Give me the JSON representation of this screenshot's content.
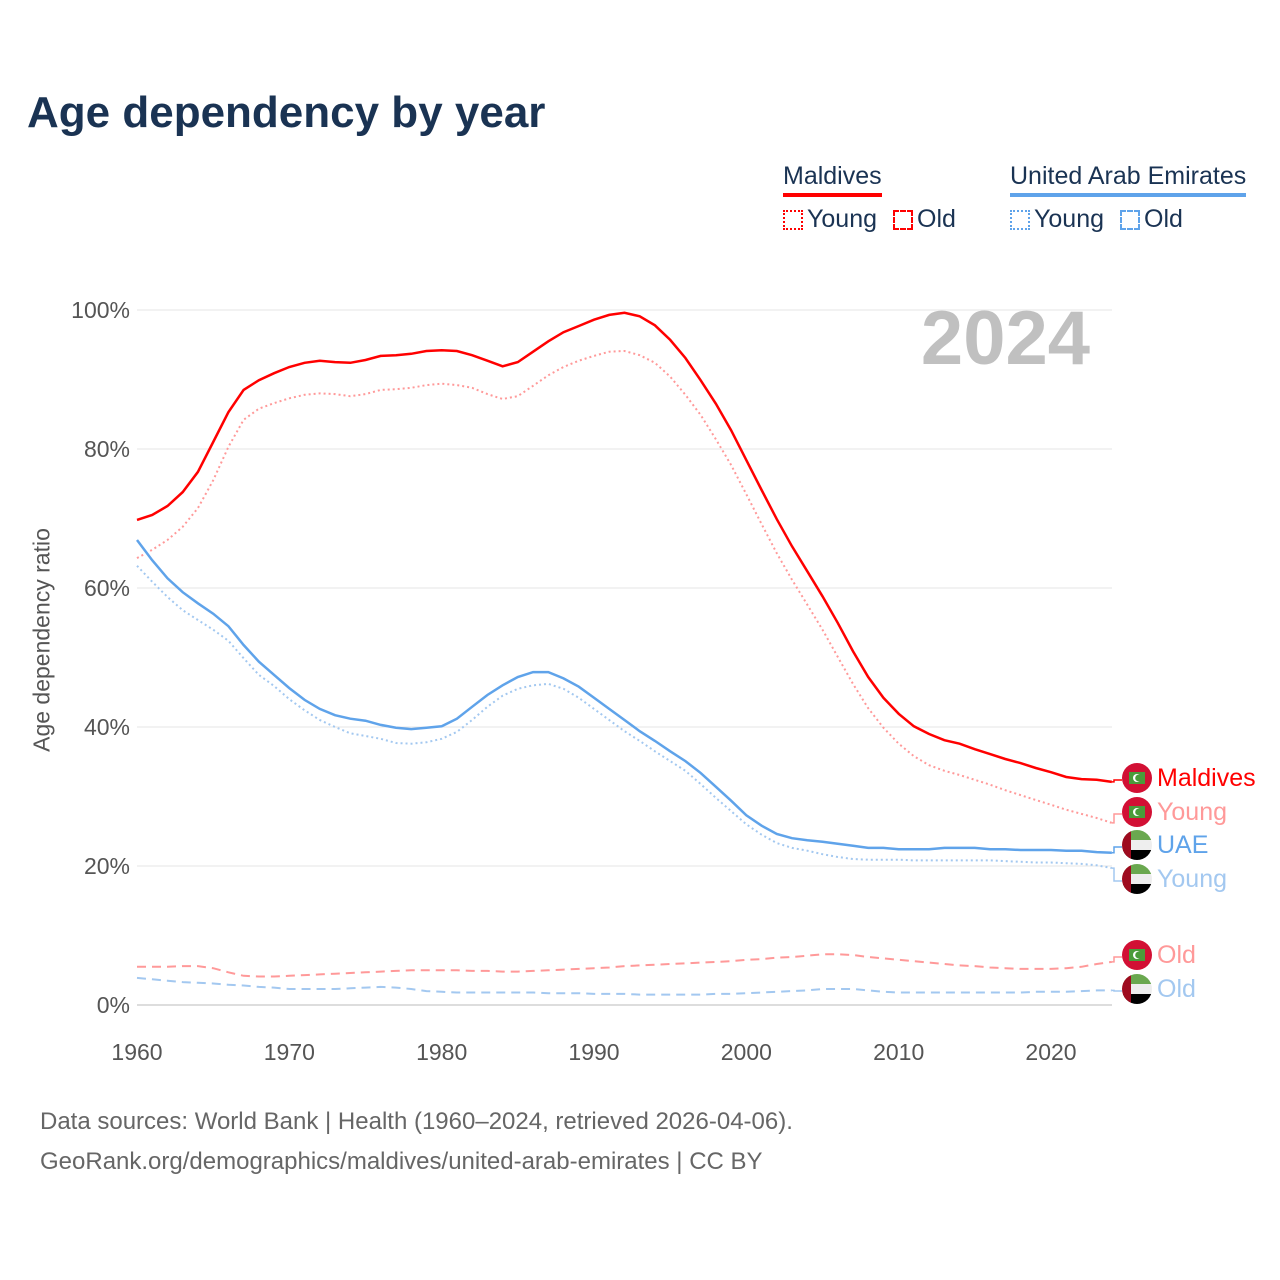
{
  "title": "Age dependency by year",
  "year_watermark": "2024",
  "legend": {
    "maldives": {
      "name": "Maldives",
      "young": "Young",
      "old": "Old"
    },
    "uae": {
      "name": "United Arab Emirates",
      "young": "Young",
      "old": "Old"
    }
  },
  "end_labels": {
    "maldives_total": "Maldives",
    "maldives_young": "Young",
    "uae_total": "UAE",
    "uae_young": "Young",
    "maldives_old": "Old",
    "uae_old": "Old"
  },
  "source": {
    "line1": "Data sources: World Bank | Health (1960–2024, retrieved 2026-04-06).",
    "line2": "GeoRank.org/demographics/maldives/united-arab-emirates | CC BY"
  },
  "colors": {
    "maldives": "#ff0000",
    "maldives_light": "#ff9999",
    "uae": "#5fa3ea",
    "uae_light": "#a3c8f0",
    "title": "#1a3353"
  },
  "chart_data": {
    "type": "line",
    "title": "Age dependency by year",
    "xlabel": "",
    "ylabel": "Age dependency ratio",
    "xlim": [
      1960,
      2024
    ],
    "ylim": [
      0,
      100
    ],
    "x_ticks": [
      1960,
      1970,
      1980,
      1990,
      2000,
      2010,
      2020
    ],
    "x_tick_labels": [
      "1960",
      "1970",
      "1980",
      "1990",
      "2000",
      "2010",
      "2020"
    ],
    "y_ticks": [
      0,
      20,
      40,
      60,
      80,
      100
    ],
    "y_tick_labels": [
      "0%",
      "20%",
      "40%",
      "60%",
      "80%",
      "100%"
    ],
    "grid": true,
    "legend_position": "top-right",
    "x_start": 1960,
    "series": [
      {
        "name": "Maldives",
        "style": "solid",
        "color": "#ff0000",
        "values": [
          69.8,
          70.5,
          71.8,
          73.8,
          76.7,
          81,
          85.3,
          88.5,
          89.9,
          90.9,
          91.8,
          92.4,
          92.7,
          92.5,
          92.4,
          92.8,
          93.4,
          93.5,
          93.7,
          94.1,
          94.2,
          94.1,
          93.5,
          92.7,
          91.9,
          92.5,
          94,
          95.5,
          96.8,
          97.7,
          98.6,
          99.3,
          99.6,
          99.1,
          97.8,
          95.7,
          93.1,
          89.9,
          86.5,
          82.7,
          78.4,
          74.1,
          69.9,
          66,
          62.4,
          58.8,
          55,
          50.9,
          47.2,
          44.2,
          41.9,
          40.1,
          39,
          38.1,
          37.6,
          36.8,
          36.1,
          35.4,
          34.8,
          34.1,
          33.5,
          32.8,
          32.5,
          32.4,
          32.1
        ]
      },
      {
        "name": "Maldives Young",
        "style": "dotted",
        "color": "#ff9999",
        "values": [
          64.3,
          65.5,
          66.9,
          68.8,
          71.5,
          75.5,
          80.3,
          84.2,
          85.8,
          86.6,
          87.3,
          87.8,
          88,
          87.9,
          87.6,
          87.9,
          88.5,
          88.6,
          88.8,
          89.2,
          89.4,
          89.2,
          88.8,
          87.9,
          87.2,
          87.6,
          89.1,
          90.6,
          91.8,
          92.7,
          93.4,
          94,
          94.1,
          93.5,
          92.4,
          90.4,
          87.8,
          84.9,
          81.4,
          77.7,
          73.5,
          69.2,
          65,
          61.2,
          57.6,
          54,
          50.1,
          46.2,
          42.7,
          39.9,
          37.6,
          35.8,
          34.5,
          33.7,
          33.1,
          32.4,
          31.7,
          30.9,
          30.2,
          29.5,
          28.8,
          28.1,
          27.5,
          26.9,
          26.2
        ]
      },
      {
        "name": "Maldives Old",
        "style": "dashed",
        "color": "#ff9999",
        "values": [
          5.5,
          5.5,
          5.5,
          5.6,
          5.6,
          5.3,
          4.7,
          4.2,
          4.1,
          4.1,
          4.2,
          4.3,
          4.4,
          4.5,
          4.6,
          4.7,
          4.8,
          4.9,
          5,
          5,
          5,
          5,
          4.9,
          4.9,
          4.8,
          4.8,
          4.9,
          5,
          5.1,
          5.2,
          5.3,
          5.4,
          5.6,
          5.7,
          5.8,
          5.9,
          6,
          6.1,
          6.2,
          6.3,
          6.5,
          6.6,
          6.8,
          6.9,
          7.1,
          7.3,
          7.3,
          7.2,
          6.9,
          6.7,
          6.5,
          6.3,
          6.1,
          5.9,
          5.7,
          5.6,
          5.4,
          5.3,
          5.2,
          5.2,
          5.2,
          5.3,
          5.5,
          5.9,
          6.2
        ]
      },
      {
        "name": "UAE",
        "style": "solid",
        "color": "#5fa3ea",
        "values": [
          66.9,
          64,
          61.4,
          59.4,
          57.8,
          56.3,
          54.5,
          51.8,
          49.4,
          47.5,
          45.6,
          43.9,
          42.6,
          41.7,
          41.2,
          40.9,
          40.3,
          39.9,
          39.7,
          39.9,
          40.1,
          41.2,
          42.9,
          44.6,
          46,
          47.2,
          47.9,
          47.9,
          47,
          45.8,
          44.2,
          42.6,
          41,
          39.4,
          38,
          36.5,
          35.1,
          33.4,
          31.4,
          29.4,
          27.3,
          25.8,
          24.6,
          24,
          23.7,
          23.5,
          23.2,
          22.9,
          22.6,
          22.6,
          22.4,
          22.4,
          22.4,
          22.6,
          22.6,
          22.6,
          22.4,
          22.4,
          22.3,
          22.3,
          22.3,
          22.2,
          22.2,
          22,
          21.9
        ]
      },
      {
        "name": "UAE Young",
        "style": "dotted",
        "color": "#a3c8f0",
        "values": [
          63.2,
          60.9,
          58.7,
          56.8,
          55.4,
          54,
          52.4,
          49.9,
          47.5,
          45.9,
          44,
          42.4,
          41,
          40,
          39.1,
          38.7,
          38.3,
          37.7,
          37.6,
          37.8,
          38.3,
          39.3,
          41,
          42.9,
          44.5,
          45.5,
          46,
          46.2,
          45.5,
          44.2,
          42.6,
          41,
          39.4,
          38,
          36.5,
          35.1,
          33.7,
          31.8,
          29.8,
          27.9,
          26,
          24.5,
          23.3,
          22.6,
          22.2,
          21.7,
          21.3,
          21,
          20.9,
          20.9,
          20.9,
          20.8,
          20.8,
          20.8,
          20.8,
          20.8,
          20.8,
          20.7,
          20.6,
          20.5,
          20.5,
          20.4,
          20.3,
          20.1,
          19.7
        ]
      },
      {
        "name": "UAE Old",
        "style": "dashed",
        "color": "#a3c8f0",
        "values": [
          3.9,
          3.7,
          3.5,
          3.3,
          3.2,
          3.1,
          2.9,
          2.8,
          2.6,
          2.5,
          2.3,
          2.3,
          2.3,
          2.3,
          2.4,
          2.5,
          2.6,
          2.5,
          2.3,
          2,
          1.9,
          1.8,
          1.8,
          1.8,
          1.8,
          1.8,
          1.8,
          1.7,
          1.7,
          1.7,
          1.6,
          1.6,
          1.6,
          1.5,
          1.5,
          1.5,
          1.5,
          1.5,
          1.6,
          1.6,
          1.7,
          1.8,
          1.9,
          2,
          2.1,
          2.3,
          2.3,
          2.3,
          2.1,
          1.9,
          1.8,
          1.8,
          1.8,
          1.8,
          1.8,
          1.8,
          1.8,
          1.8,
          1.8,
          1.9,
          1.9,
          1.9,
          2,
          2.1,
          2.1
        ]
      }
    ]
  }
}
